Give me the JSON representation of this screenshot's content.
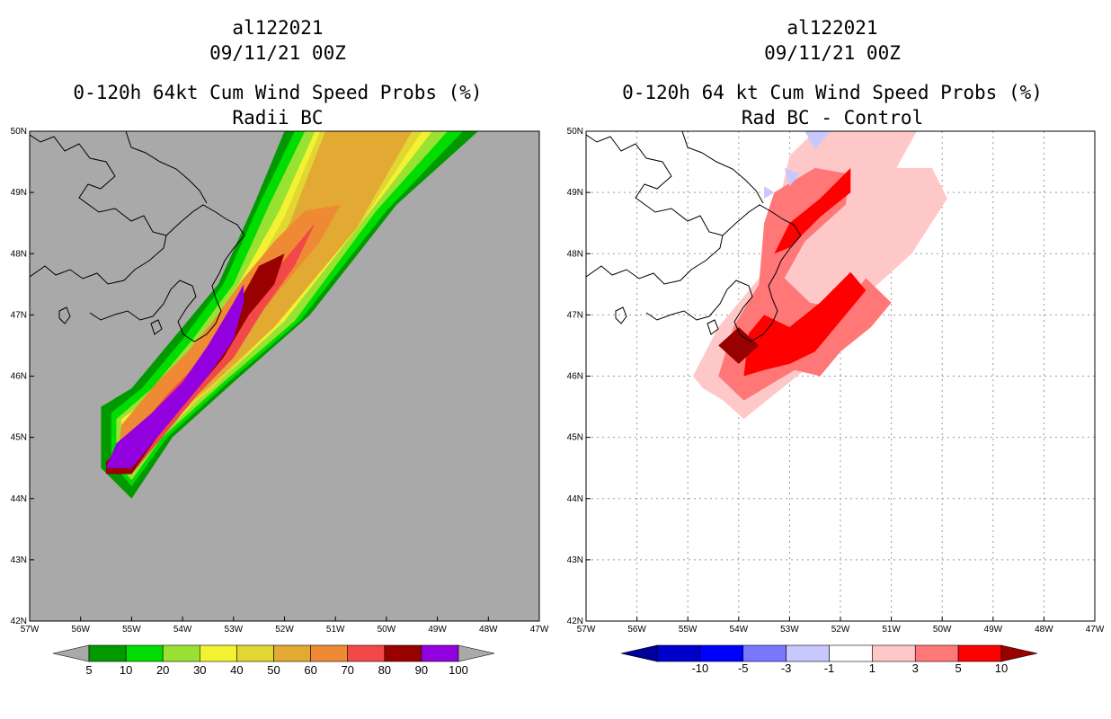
{
  "panels": [
    {
      "id": "left",
      "title_lines": [
        "al122021",
        "09/11/21 00Z",
        "0-120h 64kt Cum Wind Speed Probs (%)",
        "Radii BC"
      ]
    },
    {
      "id": "right",
      "title_lines": [
        "al122021",
        "09/11/21 00Z",
        "0-120h 64 kt Cum Wind Speed Probs (%)",
        "Rad BC - Control"
      ]
    }
  ],
  "map": {
    "lon_labels": [
      "57W",
      "56W",
      "55W",
      "54W",
      "53W",
      "52W",
      "51W",
      "50W",
      "49W",
      "48W",
      "47W"
    ],
    "lat_labels": [
      "42N",
      "43N",
      "44N",
      "45N",
      "46N",
      "47N",
      "48N",
      "49N",
      "50N"
    ]
  },
  "chart_data": [
    {
      "type": "heatmap",
      "title": "0-120h 64kt Cum Wind Speed Probs (%) Radii BC",
      "xlim": [
        -57,
        -47
      ],
      "ylim": [
        42,
        50
      ],
      "background_color": "#a9a9a9",
      "colorbar": {
        "labels": [
          "5",
          "10",
          "20",
          "30",
          "40",
          "50",
          "60",
          "70",
          "80",
          "90",
          "100"
        ],
        "colors": [
          "#009900",
          "#00dd00",
          "#99e233",
          "#f2f233",
          "#e2d633",
          "#e2aa33",
          "#ee8a33",
          "#f24848",
          "#990000",
          "#9300e0"
        ],
        "end_colors": [
          "#a9a9a9",
          "#a9a9a9"
        ]
      },
      "contours": [
        {
          "level": 5,
          "color": "#009900",
          "polygon": [
            [
              -55.6,
              44.5
            ],
            [
              -55.6,
              45.5
            ],
            [
              -55.0,
              45.8
            ],
            [
              -54.2,
              46.6
            ],
            [
              -53.3,
              47.5
            ],
            [
              -52.6,
              48.8
            ],
            [
              -52.0,
              50.0
            ],
            [
              -48.2,
              50.0
            ],
            [
              -49.8,
              48.8
            ],
            [
              -51.5,
              47.0
            ],
            [
              -53.0,
              45.9
            ],
            [
              -54.2,
              45.0
            ],
            [
              -55.0,
              44.0
            ]
          ]
        },
        {
          "level": 10,
          "color": "#00dd00",
          "polygon": [
            [
              -55.4,
              44.6
            ],
            [
              -55.4,
              45.4
            ],
            [
              -54.8,
              45.8
            ],
            [
              -54.0,
              46.6
            ],
            [
              -53.2,
              47.5
            ],
            [
              -52.5,
              48.8
            ],
            [
              -51.8,
              50.0
            ],
            [
              -48.5,
              50.0
            ],
            [
              -50.0,
              48.7
            ],
            [
              -51.7,
              46.9
            ],
            [
              -53.1,
              45.9
            ],
            [
              -54.3,
              45.0
            ],
            [
              -55.0,
              44.2
            ]
          ]
        },
        {
          "level": 20,
          "color": "#99e233",
          "polygon": [
            [
              -55.3,
              44.6
            ],
            [
              -55.3,
              45.3
            ],
            [
              -54.6,
              45.8
            ],
            [
              -53.8,
              46.6
            ],
            [
              -53.0,
              47.5
            ],
            [
              -52.3,
              48.8
            ],
            [
              -51.6,
              50.0
            ],
            [
              -48.8,
              50.0
            ],
            [
              -50.2,
              48.7
            ],
            [
              -51.8,
              46.9
            ],
            [
              -53.2,
              45.9
            ],
            [
              -54.4,
              45.0
            ],
            [
              -55.0,
              44.3
            ]
          ]
        },
        {
          "level": 30,
          "color": "#f2f233",
          "polygon": [
            [
              -55.2,
              44.6
            ],
            [
              -55.2,
              45.3
            ],
            [
              -54.4,
              45.8
            ],
            [
              -53.6,
              46.6
            ],
            [
              -52.9,
              47.5
            ],
            [
              -52.1,
              48.7
            ],
            [
              -51.4,
              50.0
            ],
            [
              -49.1,
              50.0
            ],
            [
              -50.4,
              48.6
            ],
            [
              -52.0,
              46.9
            ],
            [
              -53.3,
              45.9
            ],
            [
              -54.5,
              45.0
            ],
            [
              -55.0,
              44.4
            ]
          ]
        },
        {
          "level": 40,
          "color": "#e2d633",
          "polygon": [
            [
              -55.1,
              44.5
            ],
            [
              -55.1,
              45.2
            ],
            [
              -54.3,
              45.8
            ],
            [
              -53.5,
              46.6
            ],
            [
              -52.8,
              47.4
            ],
            [
              -52.0,
              48.6
            ],
            [
              -51.3,
              50.0
            ],
            [
              -49.3,
              50.0
            ],
            [
              -50.5,
              48.5
            ],
            [
              -52.1,
              46.9
            ],
            [
              -53.4,
              45.8
            ],
            [
              -54.6,
              45.0
            ],
            [
              -55.0,
              44.4
            ]
          ]
        },
        {
          "level": 50,
          "color": "#e2aa33",
          "polygon": [
            [
              -55.0,
              44.5
            ],
            [
              -55.0,
              45.1
            ],
            [
              -54.2,
              45.7
            ],
            [
              -53.4,
              46.5
            ],
            [
              -52.7,
              47.3
            ],
            [
              -51.9,
              48.5
            ],
            [
              -51.2,
              50.0
            ],
            [
              -49.5,
              50.0
            ],
            [
              -50.6,
              48.4
            ],
            [
              -52.2,
              46.8
            ],
            [
              -53.5,
              45.8
            ],
            [
              -54.7,
              45.0
            ],
            [
              -55.0,
              44.5
            ]
          ]
        },
        {
          "level": 60,
          "color": "#ee8a33",
          "polygon": [
            [
              -55.3,
              44.5
            ],
            [
              -55.2,
              45.2
            ],
            [
              -54.5,
              45.9
            ],
            [
              -53.9,
              46.4
            ],
            [
              -53.4,
              46.9
            ],
            [
              -52.8,
              47.6
            ],
            [
              -52.2,
              48.2
            ],
            [
              -51.6,
              48.7
            ],
            [
              -50.9,
              48.8
            ],
            [
              -51.3,
              48.2
            ],
            [
              -52.0,
              47.5
            ],
            [
              -52.5,
              47.0
            ],
            [
              -53.0,
              46.4
            ],
            [
              -53.7,
              45.8
            ],
            [
              -54.4,
              45.1
            ],
            [
              -55.0,
              44.5
            ]
          ]
        },
        {
          "level": 70,
          "color": "#f24848",
          "polygon": [
            [
              -55.5,
              44.4
            ],
            [
              -55.0,
              45.0
            ],
            [
              -54.3,
              45.7
            ],
            [
              -53.6,
              46.3
            ],
            [
              -53.0,
              46.9
            ],
            [
              -52.6,
              47.4
            ],
            [
              -52.0,
              47.9
            ],
            [
              -51.4,
              48.5
            ],
            [
              -51.8,
              47.8
            ],
            [
              -52.4,
              47.1
            ],
            [
              -53.0,
              46.3
            ],
            [
              -53.7,
              45.7
            ],
            [
              -54.4,
              45.0
            ],
            [
              -55.0,
              44.4
            ]
          ]
        },
        {
          "level": 80,
          "color": "#990000",
          "polygon": [
            [
              -55.5,
              44.4
            ],
            [
              -55.5,
              44.6
            ],
            [
              -54.8,
              45.2
            ],
            [
              -54.0,
              45.8
            ],
            [
              -53.4,
              46.5
            ],
            [
              -52.9,
              47.2
            ],
            [
              -52.5,
              47.8
            ],
            [
              -52.0,
              48.0
            ],
            [
              -52.2,
              47.5
            ],
            [
              -52.7,
              47.0
            ],
            [
              -53.2,
              46.3
            ],
            [
              -53.8,
              45.7
            ],
            [
              -54.5,
              45.0
            ],
            [
              -55.0,
              44.4
            ]
          ]
        },
        {
          "level": 90,
          "color": "#9300e0",
          "polygon": [
            [
              -55.5,
              44.5
            ],
            [
              -55.3,
              44.9
            ],
            [
              -54.6,
              45.4
            ],
            [
              -54.0,
              45.9
            ],
            [
              -53.5,
              46.5
            ],
            [
              -53.0,
              47.2
            ],
            [
              -52.8,
              47.5
            ],
            [
              -52.8,
              47.2
            ],
            [
              -53.0,
              46.6
            ],
            [
              -53.5,
              46.0
            ],
            [
              -54.1,
              45.4
            ],
            [
              -54.6,
              44.9
            ],
            [
              -55.0,
              44.5
            ]
          ]
        }
      ]
    },
    {
      "type": "heatmap",
      "title": "0-120h 64 kt Cum Wind Speed Probs (%) Rad BC - Control",
      "xlim": [
        -57,
        -47
      ],
      "ylim": [
        42,
        50
      ],
      "background_color": "#ffffff",
      "colorbar": {
        "labels": [
          "-10",
          "-5",
          "-3",
          "-1",
          "1",
          "3",
          "5",
          "10"
        ],
        "colors": [
          "#0000cc",
          "#0000ff",
          "#7777ff",
          "#c8c8ff",
          "#ffffff",
          "#ffc8c8",
          "#ff7777",
          "#ff0000"
        ],
        "end_colors": [
          "#000099",
          "#990000"
        ]
      },
      "contours": [
        {
          "level": 1,
          "color": "#ffc8c8",
          "polygon": [
            [
              -54.9,
              46.0
            ],
            [
              -54.4,
              46.8
            ],
            [
              -53.6,
              47.6
            ],
            [
              -53.3,
              48.5
            ],
            [
              -53.0,
              49.6
            ],
            [
              -52.5,
              50.0
            ],
            [
              -50.5,
              50.0
            ],
            [
              -50.9,
              49.4
            ],
            [
              -50.2,
              49.4
            ],
            [
              -49.9,
              48.9
            ],
            [
              -50.6,
              48.0
            ],
            [
              -51.4,
              47.4
            ],
            [
              -52.1,
              46.7
            ],
            [
              -52.7,
              46.1
            ],
            [
              -53.3,
              45.7
            ],
            [
              -53.9,
              45.3
            ],
            [
              -54.3,
              45.6
            ],
            [
              -54.7,
              45.8
            ]
          ]
        },
        {
          "level": 3,
          "color": "#ff7777",
          "polygon": [
            [
              -54.4,
              46.0
            ],
            [
              -54.1,
              46.8
            ],
            [
              -53.6,
              47.5
            ],
            [
              -53.5,
              48.5
            ],
            [
              -53.3,
              49.0
            ],
            [
              -52.5,
              49.4
            ],
            [
              -51.8,
              49.3
            ],
            [
              -51.9,
              48.8
            ],
            [
              -52.7,
              48.2
            ],
            [
              -53.1,
              47.6
            ],
            [
              -52.6,
              47.2
            ],
            [
              -52.0,
              47.1
            ],
            [
              -51.5,
              47.6
            ],
            [
              -51.0,
              47.2
            ],
            [
              -51.4,
              46.8
            ],
            [
              -52.0,
              46.4
            ],
            [
              -52.4,
              46.0
            ],
            [
              -52.9,
              46.1
            ],
            [
              -53.3,
              45.9
            ],
            [
              -53.9,
              45.6
            ]
          ]
        },
        {
          "level": 5,
          "color": "#ff0000",
          "polygon": [
            [
              -53.9,
              46.0
            ],
            [
              -53.8,
              46.7
            ],
            [
              -53.5,
              47.0
            ],
            [
              -53.0,
              46.8
            ],
            [
              -52.4,
              47.2
            ],
            [
              -51.8,
              47.7
            ],
            [
              -51.5,
              47.4
            ],
            [
              -52.0,
              46.9
            ],
            [
              -52.5,
              46.4
            ],
            [
              -53.0,
              46.2
            ],
            [
              -53.5,
              46.1
            ]
          ]
        },
        {
          "level": 5,
          "color": "#ff0000",
          "polygon": [
            [
              -53.3,
              48.0
            ],
            [
              -53.0,
              48.5
            ],
            [
              -52.4,
              48.9
            ],
            [
              -51.8,
              49.4
            ],
            [
              -51.8,
              49.0
            ],
            [
              -52.4,
              48.6
            ],
            [
              -53.0,
              48.1
            ]
          ]
        },
        {
          "level": 10,
          "color": "#990000",
          "polygon": [
            [
              -54.4,
              46.5
            ],
            [
              -54.0,
              46.8
            ],
            [
              -53.6,
              46.5
            ],
            [
              -54.0,
              46.2
            ]
          ]
        },
        {
          "level": -1,
          "color": "#c8c8ff",
          "polygon": [
            [
              -52.7,
              50.0
            ],
            [
              -52.2,
              50.0
            ],
            [
              -52.5,
              49.7
            ]
          ]
        },
        {
          "level": -1,
          "color": "#c8c8ff",
          "polygon": [
            [
              -53.1,
              49.4
            ],
            [
              -52.8,
              49.3
            ],
            [
              -53.0,
              49.1
            ]
          ]
        },
        {
          "level": -1,
          "color": "#c8c8ff",
          "polygon": [
            [
              -53.5,
              49.1
            ],
            [
              -53.3,
              49.0
            ],
            [
              -53.5,
              48.9
            ]
          ]
        }
      ]
    }
  ]
}
